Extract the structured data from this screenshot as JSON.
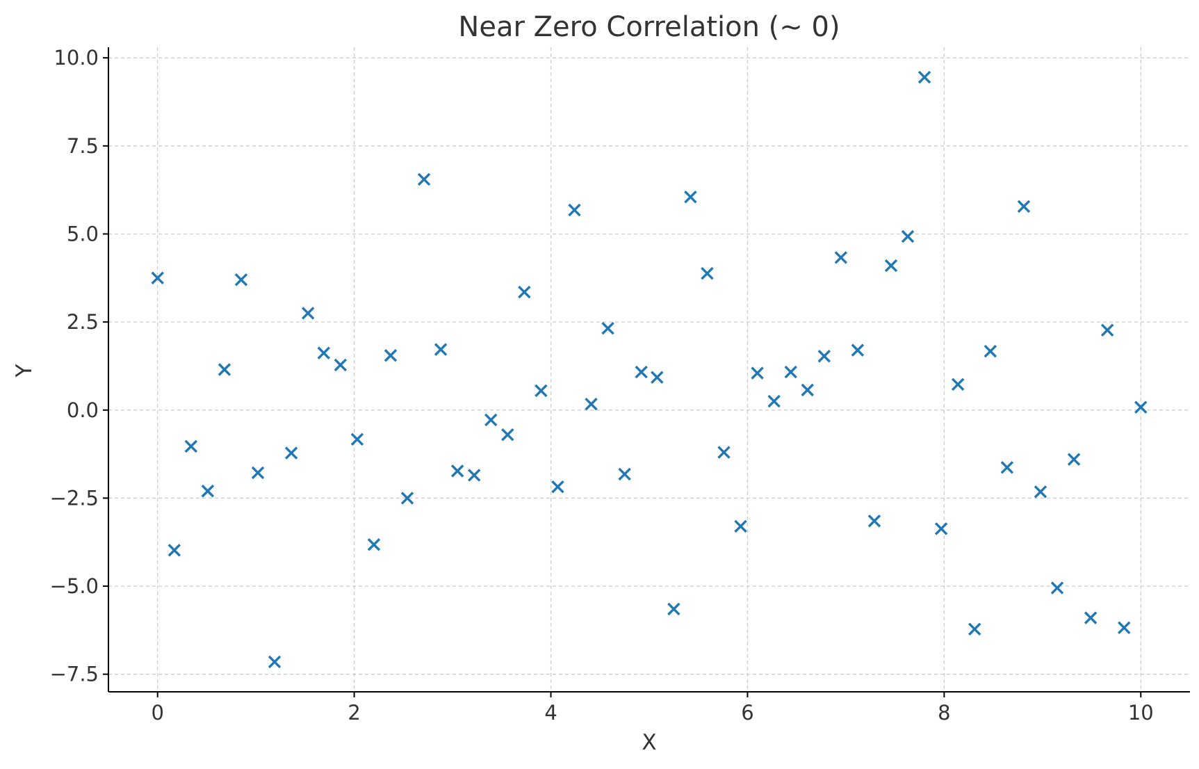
{
  "chart_data": {
    "type": "scatter",
    "title": "Near Zero Correlation (~ 0)",
    "xlabel": "X",
    "ylabel": "Y",
    "xlim": [
      -0.5,
      10.5
    ],
    "ylim": [
      -8.0,
      10.3
    ],
    "xticks": [
      0,
      2,
      4,
      6,
      8,
      10
    ],
    "xtick_labels": [
      "0",
      "2",
      "4",
      "6",
      "8",
      "10"
    ],
    "yticks": [
      10.0,
      7.5,
      5.0,
      2.5,
      0.0,
      -2.5,
      -5.0,
      -7.5
    ],
    "ytick_labels": [
      "10.0",
      "7.5",
      "5.0",
      "2.5",
      "0.0",
      "−2.5",
      "−5.0",
      "−7.5"
    ],
    "grid": true,
    "marker": "x",
    "color": "#1f77b4",
    "x": [
      0.0,
      0.17,
      0.34,
      0.51,
      0.68,
      0.85,
      1.02,
      1.19,
      1.36,
      1.53,
      1.69,
      1.86,
      2.03,
      2.2,
      2.37,
      2.54,
      2.71,
      2.88,
      3.05,
      3.22,
      3.39,
      3.56,
      3.73,
      3.9,
      4.07,
      4.24,
      4.41,
      4.58,
      4.75,
      4.92,
      5.08,
      5.25,
      5.42,
      5.59,
      5.76,
      5.93,
      6.1,
      6.27,
      6.44,
      6.61,
      6.78,
      6.95,
      7.12,
      7.29,
      7.46,
      7.63,
      7.8,
      7.97,
      8.14,
      8.31,
      8.47,
      8.64,
      8.81,
      8.98,
      9.15,
      9.32,
      9.49,
      9.66,
      9.83,
      10.0
    ],
    "y": [
      3.75,
      -3.98,
      -1.03,
      -2.3,
      1.15,
      3.7,
      -1.78,
      -7.15,
      -1.22,
      2.75,
      1.62,
      1.28,
      -0.83,
      -3.82,
      1.55,
      -2.5,
      6.55,
      1.72,
      -1.73,
      -1.85,
      -0.28,
      -0.7,
      3.35,
      0.55,
      -2.18,
      5.68,
      0.17,
      2.32,
      -1.82,
      1.08,
      0.93,
      -5.65,
      6.05,
      3.88,
      -1.2,
      -3.3,
      1.05,
      0.25,
      1.08,
      0.57,
      1.53,
      4.33,
      1.7,
      -3.15,
      4.1,
      4.93,
      9.45,
      -3.37,
      0.73,
      -6.22,
      1.67,
      -1.63,
      5.78,
      -2.32,
      -5.05,
      -1.4,
      -5.9,
      2.27,
      -6.18,
      0.08
    ]
  }
}
